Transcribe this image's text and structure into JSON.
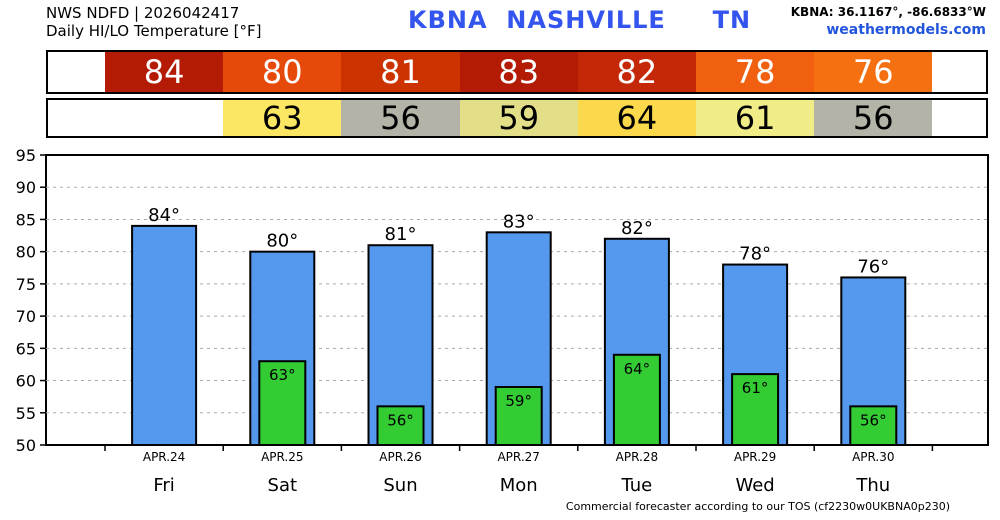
{
  "header": {
    "line1": "NWS NDFD | 2026042417",
    "line2": "Daily HI/LO Temperature [°F]",
    "station_id": "KBNA",
    "station_name": "NASHVILLE",
    "state": "TN",
    "coords": "KBNA: 36.1167°, -86.6833°W",
    "site": "weathermodels.com"
  },
  "footer": "Commercial forecaster according to our TOS (cf2230w0UKBNA0p230)",
  "colors": {
    "hi_bar": "#5599ee",
    "lo_bar": "#33cc33",
    "hi_cells": [
      "#b31b05",
      "#e64a0a",
      "#cc3300",
      "#b31b05",
      "#c42808",
      "#f06010",
      "#f57010"
    ],
    "lo_cells": [
      "#fce764",
      "#b3b3a8",
      "#e2df88",
      "#fcd84c",
      "#f0ec88",
      "#b3b3a8"
    ]
  },
  "chart_data": {
    "type": "bar",
    "days": [
      "Fri",
      "Sat",
      "Sun",
      "Mon",
      "Tue",
      "Wed",
      "Thu"
    ],
    "dates": [
      "APR.24",
      "APR.25",
      "APR.26",
      "APR.27",
      "APR.28",
      "APR.29",
      "APR.30"
    ],
    "series": [
      {
        "values": [
          84,
          80,
          81,
          83,
          82,
          78,
          76
        ],
        "labels": [
          "84°",
          "80°",
          "81°",
          "83°",
          "82°",
          "78°",
          "76°"
        ]
      },
      {
        "values": [
          null,
          63,
          56,
          59,
          64,
          61,
          56
        ],
        "labels": [
          "",
          "63°",
          "56°",
          "59°",
          "64°",
          "61°",
          "56°"
        ]
      }
    ],
    "hi_strip": [
      "84",
      "80",
      "81",
      "83",
      "82",
      "78",
      "76"
    ],
    "lo_strip": [
      "",
      "63",
      "56",
      "59",
      "64",
      "61",
      "56"
    ],
    "yticks": [
      "95",
      "90",
      "85",
      "80",
      "75",
      "70",
      "65",
      "60",
      "55",
      "50"
    ],
    "ylim": [
      50,
      95
    ],
    "grid": true
  }
}
